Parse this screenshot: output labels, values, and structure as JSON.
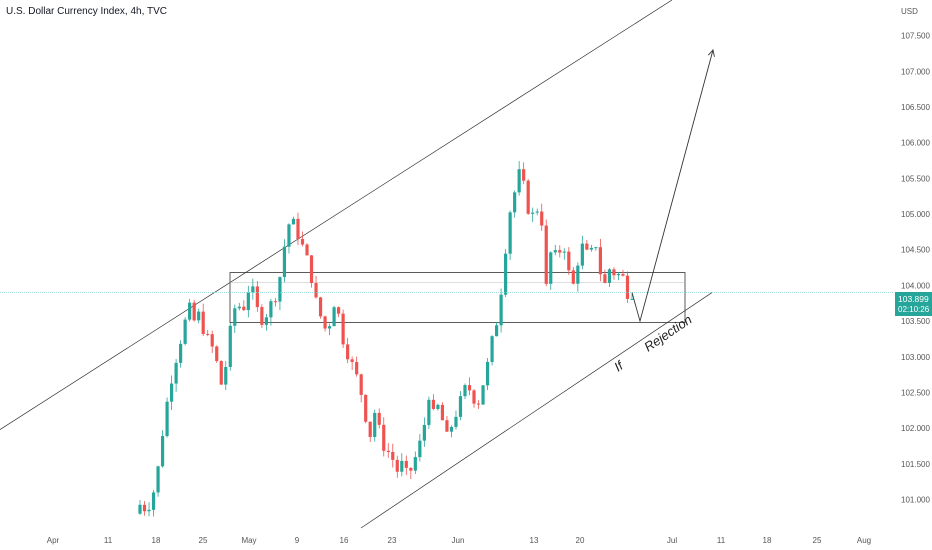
{
  "header": {
    "title": "U.S. Dollar Currency Index, 4h, TVC"
  },
  "colors": {
    "up": "#26a69a",
    "down": "#ef5350",
    "wick": "#555555",
    "price_line": "#7fd3d0",
    "price_tag": "#26a69a",
    "grid": "#ffffff",
    "drawing": "#333333"
  },
  "chart_data": {
    "type": "candlestick",
    "title": "U.S. Dollar Currency Index, 4h, TVC",
    "ylabel": "USD",
    "ylim": [
      100.6,
      108.0
    ],
    "y_ticks": [
      "101.000",
      "101.500",
      "102.000",
      "102.500",
      "103.000",
      "103.500",
      "104.000",
      "104.500",
      "105.000",
      "105.500",
      "106.000",
      "106.500",
      "107.000",
      "107.500"
    ],
    "x_ticks": [
      "Apr",
      "11",
      "18",
      "25",
      "May",
      "9",
      "16",
      "23",
      "Jun",
      "13",
      "20",
      "Jul",
      "11",
      "18",
      "25",
      "Aug"
    ],
    "last_price": "103.899",
    "countdown": "02:10:26",
    "annotations": [
      "If",
      "Rejection"
    ],
    "price_path": [
      [
        0,
        100.8
      ],
      [
        6,
        100.95
      ],
      [
        12,
        100.85
      ],
      [
        18,
        101.0
      ],
      [
        24,
        101.3
      ],
      [
        30,
        101.9
      ],
      [
        36,
        102.4
      ],
      [
        42,
        102.8
      ],
      [
        48,
        103.1
      ],
      [
        54,
        103.4
      ],
      [
        60,
        103.7
      ],
      [
        66,
        103.5
      ],
      [
        72,
        103.6
      ],
      [
        78,
        103.3
      ],
      [
        84,
        103.2
      ],
      [
        90,
        103.0
      ],
      [
        96,
        102.6
      ],
      [
        102,
        102.9
      ],
      [
        108,
        103.5
      ],
      [
        114,
        103.8
      ],
      [
        120,
        103.6
      ],
      [
        126,
        103.95
      ],
      [
        132,
        103.9
      ],
      [
        138,
        103.6
      ],
      [
        144,
        103.5
      ],
      [
        150,
        103.7
      ],
      [
        156,
        103.8
      ],
      [
        162,
        104.1
      ],
      [
        168,
        104.6
      ],
      [
        174,
        104.95
      ],
      [
        180,
        104.8
      ],
      [
        186,
        104.6
      ],
      [
        192,
        104.4
      ],
      [
        198,
        104.1
      ],
      [
        204,
        103.7
      ],
      [
        210,
        103.5
      ],
      [
        216,
        103.3
      ],
      [
        222,
        103.8
      ],
      [
        228,
        103.6
      ],
      [
        234,
        103.2
      ],
      [
        240,
        103.0
      ],
      [
        246,
        102.8
      ],
      [
        252,
        102.6
      ],
      [
        258,
        102.2
      ],
      [
        264,
        101.9
      ],
      [
        270,
        102.3
      ],
      [
        276,
        101.8
      ],
      [
        282,
        101.7
      ],
      [
        288,
        101.6
      ],
      [
        294,
        101.4
      ],
      [
        300,
        101.5
      ],
      [
        306,
        101.3
      ],
      [
        312,
        101.5
      ],
      [
        318,
        101.7
      ],
      [
        324,
        102.0
      ],
      [
        330,
        102.5
      ],
      [
        336,
        102.1
      ],
      [
        342,
        102.4
      ],
      [
        348,
        101.8
      ],
      [
        354,
        102.0
      ],
      [
        360,
        102.2
      ],
      [
        366,
        102.4
      ],
      [
        372,
        102.6
      ],
      [
        378,
        102.5
      ],
      [
        384,
        102.3
      ],
      [
        390,
        102.6
      ],
      [
        396,
        102.9
      ],
      [
        402,
        103.3
      ],
      [
        408,
        103.6
      ],
      [
        414,
        104.3
      ],
      [
        420,
        105.0
      ],
      [
        426,
        105.3
      ],
      [
        432,
        105.6
      ],
      [
        438,
        105.3
      ],
      [
        444,
        104.9
      ],
      [
        450,
        105.1
      ],
      [
        456,
        105.0
      ],
      [
        462,
        103.9
      ],
      [
        468,
        104.6
      ],
      [
        474,
        104.3
      ],
      [
        480,
        104.7
      ],
      [
        486,
        104.2
      ],
      [
        492,
        104.0
      ],
      [
        498,
        104.4
      ],
      [
        504,
        104.6
      ],
      [
        510,
        104.3
      ],
      [
        516,
        104.7
      ],
      [
        522,
        104.2
      ],
      [
        528,
        104.0
      ],
      [
        534,
        104.3
      ],
      [
        540,
        104.1
      ],
      [
        546,
        104.2
      ],
      [
        552,
        103.9
      ],
      [
        558,
        103.9
      ]
    ],
    "drawings": {
      "upper_channel": [
        [
          0,
          101.98
        ],
        [
          672,
          108.0
        ]
      ],
      "lower_channel": [
        [
          361,
          100.6
        ],
        [
          712,
          103.9
        ]
      ],
      "box": {
        "x": [
          230,
          685
        ],
        "y": [
          103.48,
          104.18
        ]
      },
      "projection": [
        [
          632,
          103.9
        ],
        [
          640,
          103.5
        ],
        [
          713,
          107.3
        ]
      ]
    }
  }
}
